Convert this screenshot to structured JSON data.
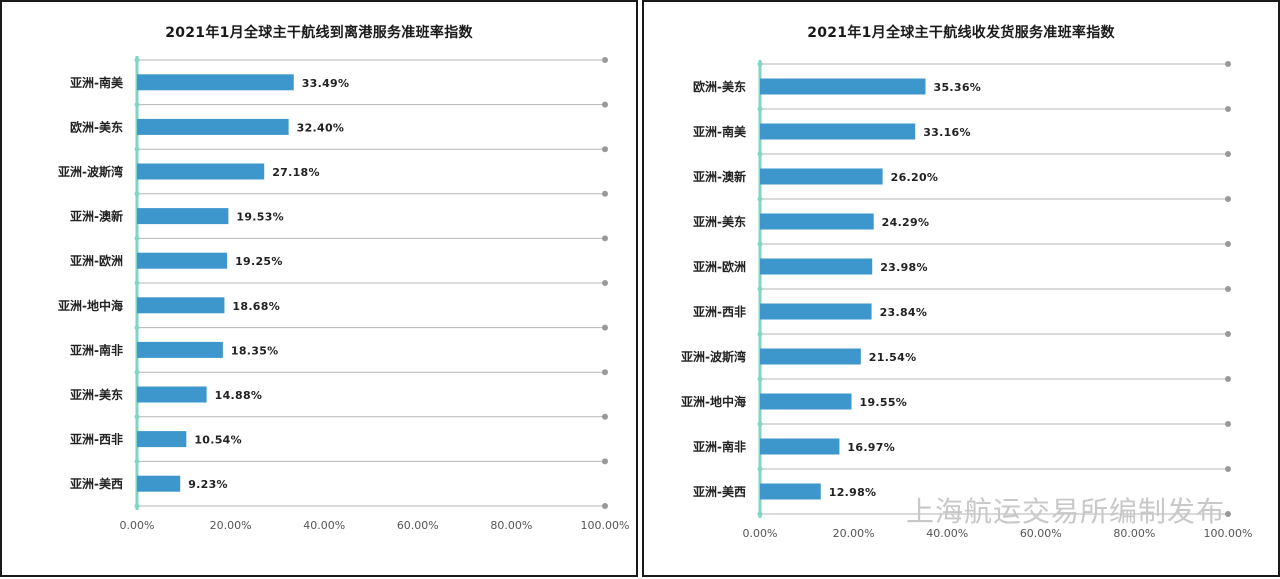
{
  "colors": {
    "bar": "#3d96cc",
    "axis": "#7fd6c4",
    "grid": "#b5b5b5",
    "grid_dot": "#999999",
    "label": "#222222",
    "tick": "#555555"
  },
  "watermark": "上海航运交易所编制发布",
  "chart_data": [
    {
      "type": "bar",
      "orientation": "horizontal",
      "title": "2021年1月全球主干航线到离港服务准班率指数",
      "categories": [
        "亚洲-南美",
        "欧洲-美东",
        "亚洲-波斯湾",
        "亚洲-澳新",
        "亚洲-欧洲",
        "亚洲-地中海",
        "亚洲-南非",
        "亚洲-美东",
        "亚洲-西非",
        "亚洲-美西"
      ],
      "values": [
        33.49,
        32.4,
        27.18,
        19.53,
        19.25,
        18.68,
        18.35,
        14.88,
        10.54,
        9.23
      ],
      "value_labels": [
        "33.49%",
        "32.40%",
        "27.18%",
        "19.53%",
        "19.25%",
        "18.68%",
        "18.35%",
        "14.88%",
        "10.54%",
        "9.23%"
      ],
      "x_ticks": [
        "0.00%",
        "20.00%",
        "40.00%",
        "60.00%",
        "80.00%",
        "100.00%"
      ],
      "xlim": [
        0,
        100
      ],
      "grid": true
    },
    {
      "type": "bar",
      "orientation": "horizontal",
      "title": "2021年1月全球主干航线收发货服务准班率指数",
      "categories": [
        "欧洲-美东",
        "亚洲-南美",
        "亚洲-澳新",
        "亚洲-美东",
        "亚洲-欧洲",
        "亚洲-西非",
        "亚洲-波斯湾",
        "亚洲-地中海",
        "亚洲-南非",
        "亚洲-美西"
      ],
      "values": [
        35.36,
        33.16,
        26.2,
        24.29,
        23.98,
        23.84,
        21.54,
        19.55,
        16.97,
        12.98
      ],
      "value_labels": [
        "35.36%",
        "33.16%",
        "26.20%",
        "24.29%",
        "23.98%",
        "23.84%",
        "21.54%",
        "19.55%",
        "16.97%",
        "12.98%"
      ],
      "x_ticks": [
        "0.00%",
        "20.00%",
        "40.00%",
        "60.00%",
        "80.00%",
        "100.00%"
      ],
      "xlim": [
        0,
        100
      ],
      "grid": true
    }
  ]
}
